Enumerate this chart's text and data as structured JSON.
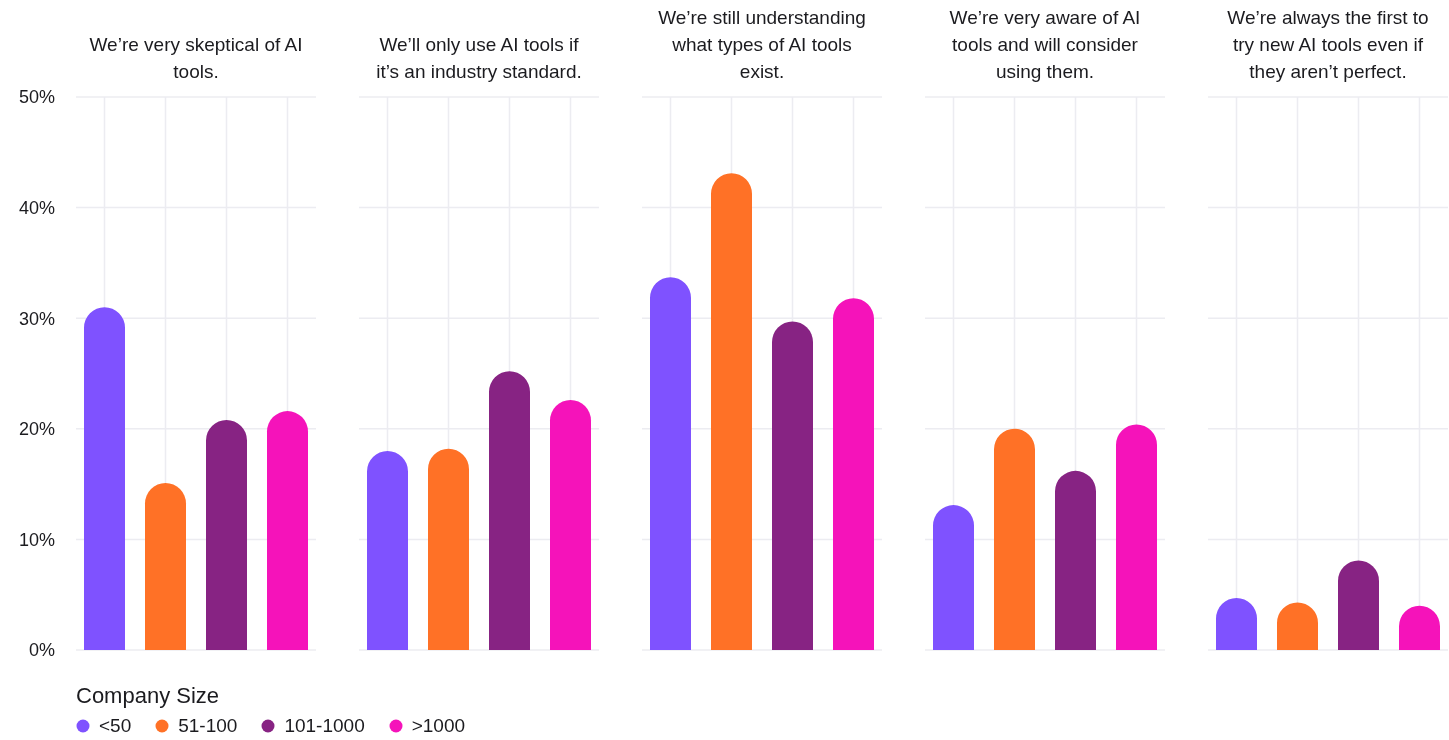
{
  "chart_data": {
    "type": "bar",
    "categories": [
      "We’re very skeptical of AI tools.",
      "We’ll only use AI tools if it’s an industry standard.",
      "We’re still understanding what types of AI tools exist.",
      "We’re very aware of AI tools and will consider using them.",
      "We’re always the first to try new AI tools even if they aren’t perfect."
    ],
    "series": [
      {
        "name": "<50",
        "color": "#7f52ff",
        "values": [
          31,
          18,
          33.7,
          13.1,
          4.7
        ]
      },
      {
        "name": "51-100",
        "color": "#ff7126",
        "values": [
          15.1,
          18.2,
          43.1,
          20,
          4.3
        ]
      },
      {
        "name": "101-1000",
        "color": "#872383",
        "values": [
          20.8,
          25.2,
          29.7,
          16.2,
          8.1
        ]
      },
      {
        "name": ">1000",
        "color": "#f513ba",
        "values": [
          21.6,
          22.6,
          31.8,
          20.4,
          4
        ]
      }
    ],
    "ylim": [
      0,
      50
    ],
    "yticks": [
      {
        "value": 0,
        "label": "0%"
      },
      {
        "value": 10,
        "label": "10%"
      },
      {
        "value": 20,
        "label": "20%"
      },
      {
        "value": 30,
        "label": "30%"
      },
      {
        "value": 40,
        "label": "40%"
      },
      {
        "value": 50,
        "label": "50%"
      }
    ],
    "grid": true,
    "legend": "bottom left",
    "legend_title": "Company Size"
  }
}
